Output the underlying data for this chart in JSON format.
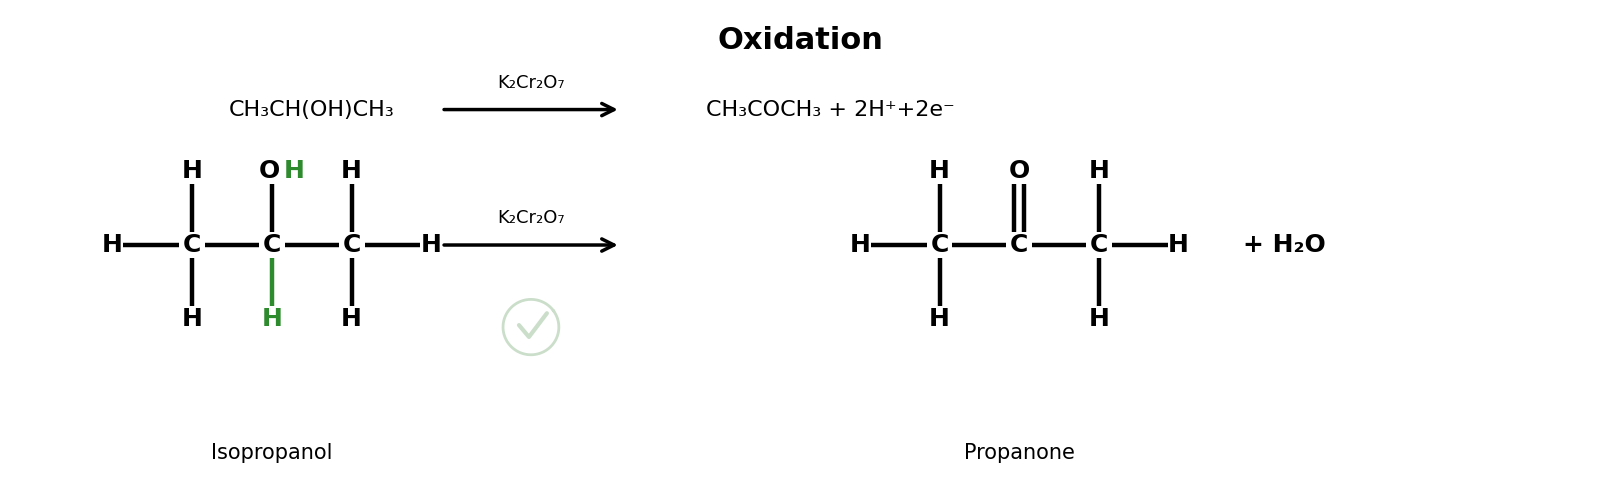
{
  "title": "Oxidation",
  "title_fontsize": 22,
  "background_color": "#ffffff",
  "text_color": "#000000",
  "green_color": "#2d8a2d",
  "fig_width": 16.0,
  "fig_height": 4.93,
  "reactant_formula": "CH₃CH(OH)CH₃",
  "product_formula": "CH₃COCH₃ + 2H⁺+2e⁻",
  "reagent_label": "K₂Cr₂O₇",
  "label_isopropanol": "Isopropanol",
  "label_propanone": "Propanone",
  "label_water": "+ H₂O",
  "struct_font_size": 18,
  "formula_font_size": 16,
  "label_font_size": 15
}
